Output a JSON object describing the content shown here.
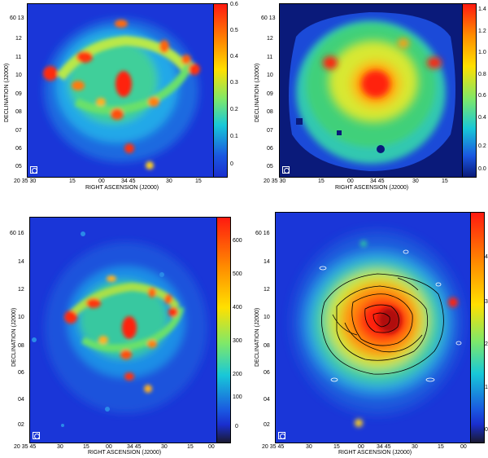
{
  "panels": [
    {
      "id": "top-left",
      "ylabel": "DECLINATION (J2000)",
      "xlabel": "RIGHT ASCENSION (J2000)",
      "y_ticks": [
        "60 13",
        "12",
        "11",
        "10",
        "09",
        "08",
        "07",
        "06",
        "05"
      ],
      "x_ticks": [
        "20 35 30",
        "15",
        "00",
        "34 45",
        "30",
        "15"
      ],
      "cbar_ticks": [
        "0.6",
        "0.5",
        "0.4",
        "0.3",
        "0.2",
        "0.1",
        "0"
      ],
      "background": "#1a36d8"
    },
    {
      "id": "top-right",
      "ylabel": "DECLINATION (J2000)",
      "xlabel": "RIGHT ASCENSION (J2000)",
      "y_ticks": [
        "60 13",
        "12",
        "11",
        "10",
        "09",
        "08",
        "07",
        "06",
        "05"
      ],
      "x_ticks": [
        "20 35 30",
        "15",
        "00",
        "34 45",
        "30",
        "15"
      ],
      "cbar_ticks": [
        "1.4",
        "1.2",
        "1.0",
        "0.8",
        "0.6",
        "0.4",
        "0.2",
        "0.0"
      ],
      "background": "#0a1a7a"
    },
    {
      "id": "bottom-left",
      "ylabel": "DECLINATION (J2000)",
      "xlabel": "RIGHT ASCENSION (J2000)",
      "y_ticks": [
        "60 16",
        "14",
        "12",
        "10",
        "08",
        "06",
        "04",
        "02"
      ],
      "x_ticks": [
        "20 35 45",
        "30",
        "15",
        "00",
        "34 45",
        "30",
        "15",
        "00"
      ],
      "cbar_ticks": [
        "600",
        "500",
        "400",
        "300",
        "200",
        "100",
        "0"
      ],
      "background": "#1a36d8"
    },
    {
      "id": "bottom-right",
      "ylabel": "DECLINATION (J2000)",
      "xlabel": "RIGHT ASCENSION (J2000)",
      "y_ticks": [
        "60 16",
        "14",
        "12",
        "10",
        "08",
        "06",
        "04",
        "02"
      ],
      "x_ticks": [
        "20 35 45",
        "30",
        "15",
        "00",
        "34 45",
        "30",
        "15",
        "00"
      ],
      "cbar_ticks": [
        "4",
        "3",
        "2",
        "1",
        "0"
      ],
      "background": "#1a36d8"
    }
  ]
}
